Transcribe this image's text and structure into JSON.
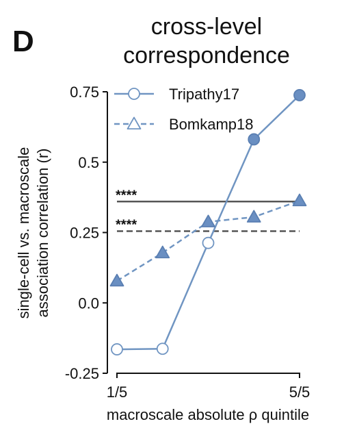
{
  "panel_label": "D",
  "chart_data": {
    "type": "line",
    "title_lines": [
      "cross-level",
      "correspondence"
    ],
    "xlabel": "macroscale absolute ρ quintile",
    "ylabel_lines": [
      "single-cell vs. macroscale",
      "association correlation (r)"
    ],
    "x": [
      1,
      2,
      3,
      4,
      5
    ],
    "x_ticks": [
      {
        "value": 1,
        "label": "1/5"
      },
      {
        "value": 5,
        "label": "5/5"
      }
    ],
    "xlim": [
      1,
      5
    ],
    "ylim": [
      -0.25,
      0.75
    ],
    "y_ticks": [
      {
        "value": -0.25,
        "label": "-0.25"
      },
      {
        "value": 0.0,
        "label": "0.0"
      },
      {
        "value": 0.25,
        "label": "0.25"
      },
      {
        "value": 0.5,
        "label": "0.5"
      },
      {
        "value": 0.75,
        "label": "0.75"
      }
    ],
    "grid": false,
    "legend_position": "top-left",
    "series": [
      {
        "name": "Tripathy17",
        "marker": "circle",
        "line_style": "solid",
        "values": [
          -0.165,
          -0.163,
          0.213,
          0.581,
          0.738
        ],
        "filled": [
          false,
          false,
          false,
          true,
          true
        ]
      },
      {
        "name": "Bomkamp18",
        "marker": "triangle",
        "line_style": "dashed",
        "values": [
          0.078,
          0.178,
          0.288,
          0.305,
          0.363
        ],
        "filled": [
          true,
          true,
          true,
          true,
          true
        ]
      }
    ],
    "reference_lines": [
      {
        "value": 0.36,
        "line_style": "solid",
        "label": "****"
      },
      {
        "value": 0.255,
        "line_style": "dashed",
        "label": "****"
      }
    ],
    "colors": {
      "series": "#7095c2",
      "marker_fill": "#6a8fc2",
      "marker_edge": "#5a7fb2",
      "reference": "#555555"
    }
  }
}
